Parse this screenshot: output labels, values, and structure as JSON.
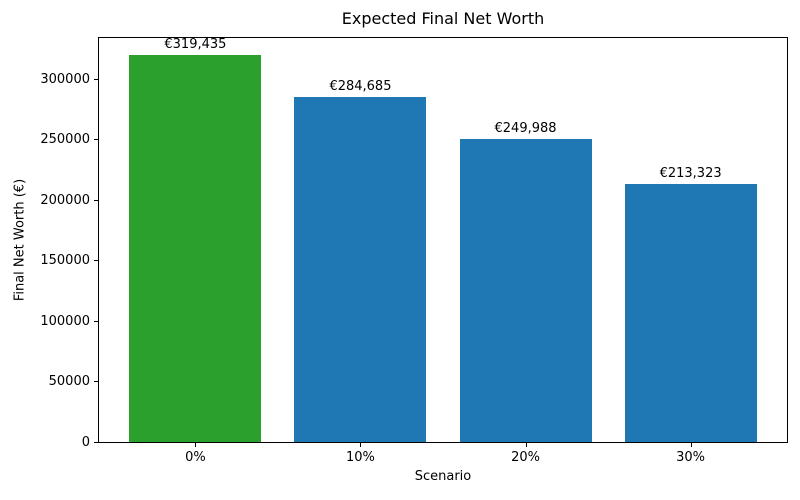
{
  "chart_data": {
    "type": "bar",
    "title": "Expected Final Net Worth",
    "xlabel": "Scenario",
    "ylabel": "Final Net Worth (€)",
    "categories": [
      "0%",
      "10%",
      "20%",
      "30%"
    ],
    "values": [
      319435,
      284685,
      249988,
      213323
    ],
    "bar_labels": [
      "€319,435",
      "€284,685",
      "€249,988",
      "€213,323"
    ],
    "bar_colors": [
      "#2ca02c",
      "#1f77b4",
      "#1f77b4",
      "#1f77b4"
    ],
    "yticks": [
      0,
      50000,
      100000,
      150000,
      200000,
      250000,
      300000
    ],
    "ytick_labels": [
      "0",
      "50000",
      "100000",
      "150000",
      "200000",
      "250000",
      "300000"
    ],
    "ylim": [
      0,
      335407
    ],
    "bar_width_fraction": 0.8,
    "grid": false,
    "legend": null
  },
  "colors": {
    "highlight_green": "#2ca02c",
    "default_blue": "#1f77b4",
    "axis": "#000000",
    "background": "#ffffff"
  }
}
